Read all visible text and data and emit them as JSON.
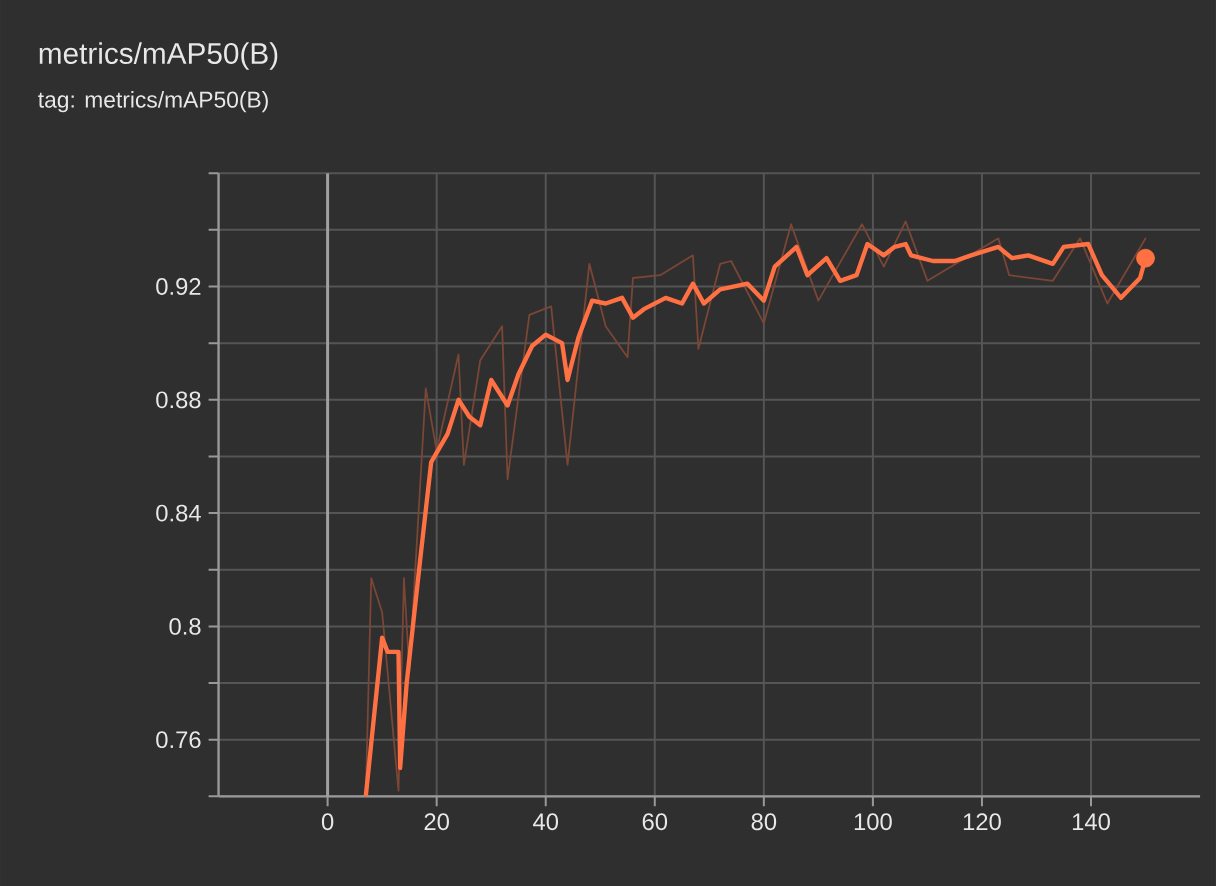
{
  "chart_data": {
    "type": "line",
    "title": "metrics/mAP50(B)",
    "subtitle": "tag: metrics/mAP50(B)",
    "xlim": [
      -20,
      160
    ],
    "ylim": [
      0.74,
      0.96
    ],
    "xticks": [
      0,
      20,
      40,
      60,
      80,
      100,
      120,
      140
    ],
    "yticks": [
      {
        "value": 0.74,
        "label": null
      },
      0.76,
      {
        "value": 0.78,
        "label": null
      },
      0.8,
      {
        "value": 0.82,
        "label": null
      },
      0.84,
      {
        "value": 0.86,
        "label": null
      },
      0.88,
      {
        "value": 0.9,
        "label": null
      },
      0.92,
      {
        "value": 0.94,
        "label": null
      },
      {
        "value": 0.96,
        "label": null
      }
    ],
    "grid": true,
    "ref_lines": [
      {
        "axis": "x",
        "value": 0,
        "color": "#a0a0a0"
      }
    ],
    "series": [
      {
        "color": "#7a4636",
        "x": [
          7,
          8,
          10,
          13,
          14,
          15,
          18,
          20,
          24,
          25,
          28,
          32,
          33,
          37,
          41,
          44,
          48,
          51,
          55,
          56,
          61,
          67,
          68,
          72,
          74,
          80,
          85,
          90,
          98,
          102,
          106,
          110,
          123,
          125,
          133,
          138,
          143,
          150
        ],
        "values": [
          0.74,
          0.817,
          0.805,
          0.742,
          0.817,
          0.784,
          0.884,
          0.862,
          0.896,
          0.857,
          0.894,
          0.906,
          0.852,
          0.91,
          0.913,
          0.857,
          0.928,
          0.906,
          0.895,
          0.923,
          0.924,
          0.931,
          0.898,
          0.928,
          0.929,
          0.907,
          0.942,
          0.915,
          0.942,
          0.927,
          0.943,
          0.922,
          0.937,
          0.924,
          0.922,
          0.937,
          0.914,
          0.937
        ]
      },
      {
        "color": "#ff7043",
        "x": [
          7,
          10,
          11,
          13,
          13.3,
          14.5,
          17,
          19,
          22,
          24,
          26,
          28,
          30,
          33,
          35,
          37.5,
          40,
          43,
          44,
          46,
          48.5,
          51,
          54,
          56,
          58,
          62,
          65,
          67,
          69,
          72,
          77,
          80,
          82,
          86,
          88,
          91.5,
          94,
          97,
          99,
          102,
          104,
          106,
          107,
          111,
          115,
          118,
          123,
          125.5,
          128.5,
          133,
          135,
          139.5,
          142,
          145.5,
          149,
          150
        ],
        "values": [
          0.74,
          0.796,
          0.791,
          0.791,
          0.75,
          0.78,
          0.824,
          0.858,
          0.868,
          0.88,
          0.874,
          0.871,
          0.887,
          0.878,
          0.889,
          0.899,
          0.903,
          0.9,
          0.887,
          0.902,
          0.915,
          0.914,
          0.916,
          0.909,
          0.912,
          0.916,
          0.914,
          0.921,
          0.914,
          0.919,
          0.921,
          0.915,
          0.927,
          0.934,
          0.924,
          0.93,
          0.922,
          0.924,
          0.935,
          0.931,
          0.934,
          0.935,
          0.931,
          0.929,
          0.929,
          0.931,
          0.934,
          0.93,
          0.931,
          0.928,
          0.934,
          0.935,
          0.924,
          0.916,
          0.923,
          0.93
        ]
      },
      {
        "type": "scatter",
        "marker": "circle",
        "color": "#ff7043",
        "x": [
          150
        ],
        "values": [
          0.93
        ]
      }
    ]
  }
}
